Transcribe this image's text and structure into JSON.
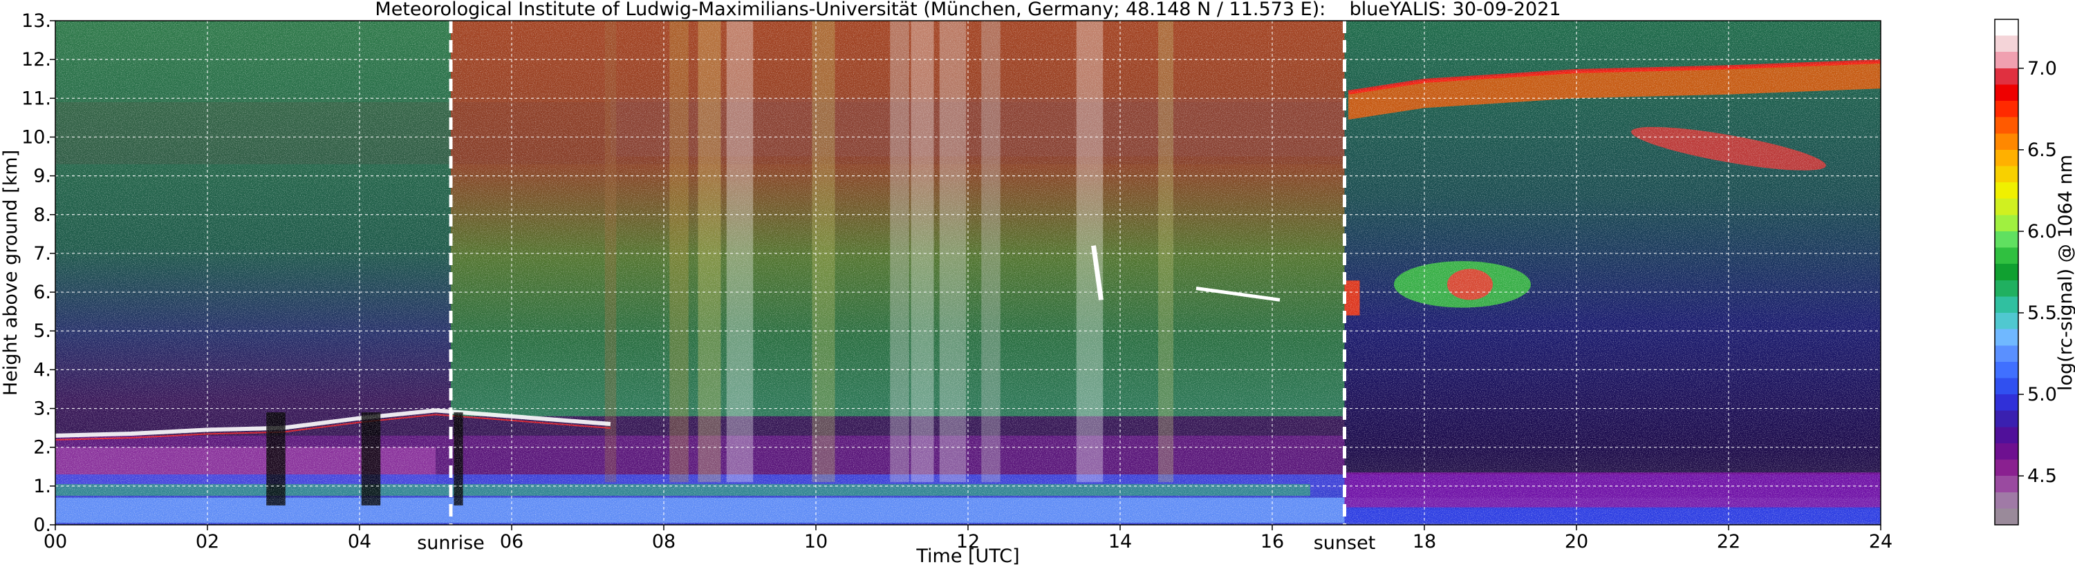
{
  "chart_data": {
    "type": "heatmap",
    "title": "Meteorological Institute of Ludwig-Maximilians-Universität (München, Germany; 48.148 N / 11.573 E):    blueYALIS: 30-09-2021",
    "xlabel": "Time [UTC]",
    "ylabel": "Height above ground [km]",
    "xlim": [
      0,
      24
    ],
    "ylim": [
      0,
      13
    ],
    "x_ticks": [
      0,
      2,
      4,
      6,
      8,
      10,
      12,
      14,
      16,
      18,
      20,
      22,
      24
    ],
    "x_tick_labels": [
      "00",
      "02",
      "04",
      "06",
      "08",
      "10",
      "12",
      "14",
      "16",
      "18",
      "20",
      "22",
      "24"
    ],
    "y_ticks": [
      0,
      1,
      2,
      3,
      4,
      5,
      6,
      7,
      8,
      9,
      10,
      11,
      12,
      13
    ],
    "y_tick_labels": [
      "0.",
      "1.",
      "2.",
      "3.",
      "4.",
      "5.",
      "6.",
      "7.",
      "8.",
      "9.",
      "10.",
      "11.",
      "12.",
      "13."
    ],
    "grid": true,
    "grid_style": "dashed",
    "annotations": [
      {
        "label": "sunrise",
        "x": 5.2
      },
      {
        "label": "sunset",
        "x": 16.95
      }
    ],
    "colorbar": {
      "label": "log(rc-signal) @ 1064 nm",
      "range": [
        4.2,
        7.3
      ],
      "ticks": [
        4.5,
        5.0,
        5.5,
        6.0,
        6.5,
        7.0
      ],
      "tick_labels": [
        "4.5",
        "5.0",
        "5.5",
        "6.0",
        "6.5",
        "7.0"
      ],
      "colors": [
        "#9a8a9a",
        "#a07aa6",
        "#9a4aa0",
        "#8a2090",
        "#6e1090",
        "#50109a",
        "#3a20b0",
        "#3030d8",
        "#3050f0",
        "#4070ff",
        "#5a90ff",
        "#70b8ff",
        "#50c8d0",
        "#30c0a0",
        "#20b060",
        "#10a030",
        "#30c040",
        "#60e060",
        "#a0f040",
        "#d0f020",
        "#f0f000",
        "#f8d000",
        "#ffb000",
        "#ff8800",
        "#ff5a00",
        "#ff2a00",
        "#ee0000",
        "#e03040",
        "#f0a0b0",
        "#f4d4d8",
        "#ffffff"
      ]
    },
    "features": [
      {
        "name": "boundary-layer top",
        "x": [
          0,
          1,
          2,
          3,
          4,
          5,
          7.3
        ],
        "height_km": [
          2.3,
          2.35,
          2.45,
          2.5,
          2.75,
          2.95,
          2.6
        ]
      },
      {
        "name": "cirrus",
        "x": [
          17.0,
          18,
          20,
          22,
          24
        ],
        "height_km": [
          10.9,
          11.2,
          11.45,
          11.55,
          11.7
        ]
      },
      {
        "name": "cloud",
        "x": [
          17.6,
          19.4
        ],
        "height_km": [
          5.6,
          6.8
        ]
      }
    ],
    "colors": {
      "sunrise_sunset_lines": "#ffffff",
      "grid": "#ffffff"
    }
  }
}
